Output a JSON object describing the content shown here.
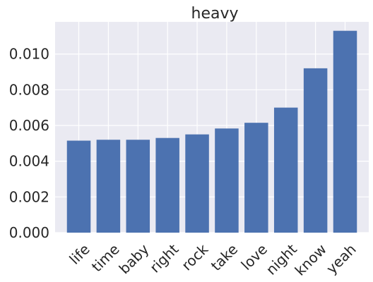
{
  "chart_data": {
    "type": "bar",
    "title": "heavy",
    "xlabel": "",
    "ylabel": "",
    "categories": [
      "life",
      "time",
      "baby",
      "right",
      "rock",
      "take",
      "love",
      "night",
      "know",
      "yeah"
    ],
    "values": [
      0.00515,
      0.0052,
      0.0052,
      0.0053,
      0.0055,
      0.00583,
      0.00615,
      0.007,
      0.0092,
      0.0113
    ],
    "ylim": [
      0,
      0.0118
    ],
    "yticks": [
      0.0,
      0.002,
      0.004,
      0.006,
      0.008,
      0.01
    ],
    "ytick_labels": [
      "0.000",
      "0.002",
      "0.004",
      "0.006",
      "0.008",
      "0.010"
    ],
    "grid": true,
    "bar_color": "#4c72b0",
    "background_color": "#eaeaf2",
    "x_label_rotation_deg": 45
  }
}
